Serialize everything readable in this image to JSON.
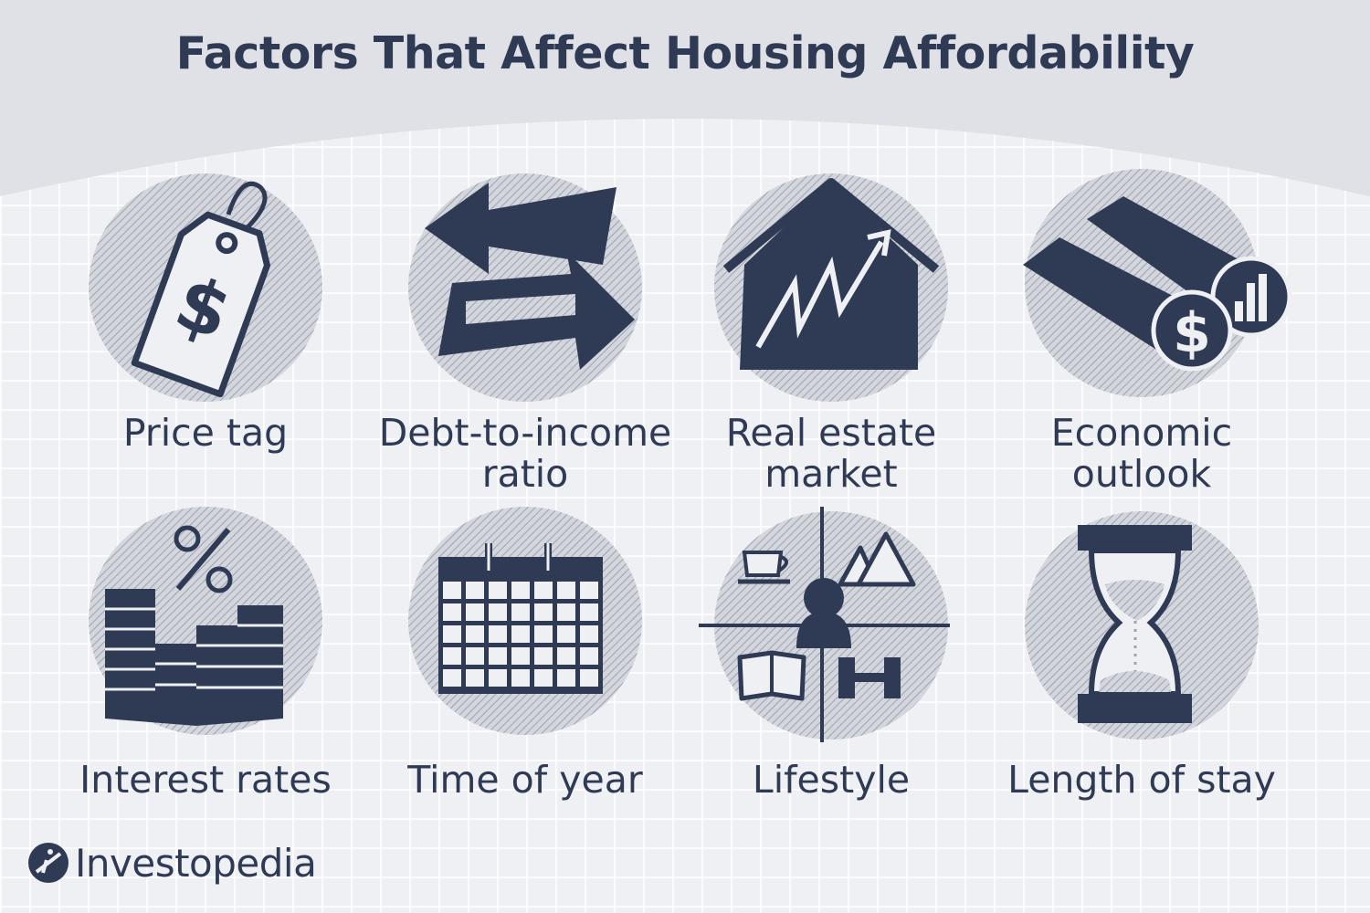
{
  "title": "Factors That Affect Housing Affordability",
  "factors": [
    {
      "label": "Price tag",
      "icon": "price-tag-icon"
    },
    {
      "label": "Debt-to-income\nratio",
      "icon": "arrows-icon"
    },
    {
      "label": "Real estate\nmarket",
      "icon": "house-chart-icon"
    },
    {
      "label": "Economic\noutlook",
      "icon": "binoculars-icon"
    },
    {
      "label": "Interest rates",
      "icon": "percent-stacks-icon"
    },
    {
      "label": "Time of year",
      "icon": "calendar-icon"
    },
    {
      "label": "Lifestyle",
      "icon": "lifestyle-icon"
    },
    {
      "label": "Length of stay",
      "icon": "hourglass-icon"
    }
  ],
  "brand": {
    "name": "Investopedia",
    "icon": "investopedia-logo-icon"
  },
  "colors": {
    "ink": "#2f3a55",
    "background": "#eef0f4",
    "header": "#dfe1e6",
    "circle": "#c9ccd3"
  }
}
